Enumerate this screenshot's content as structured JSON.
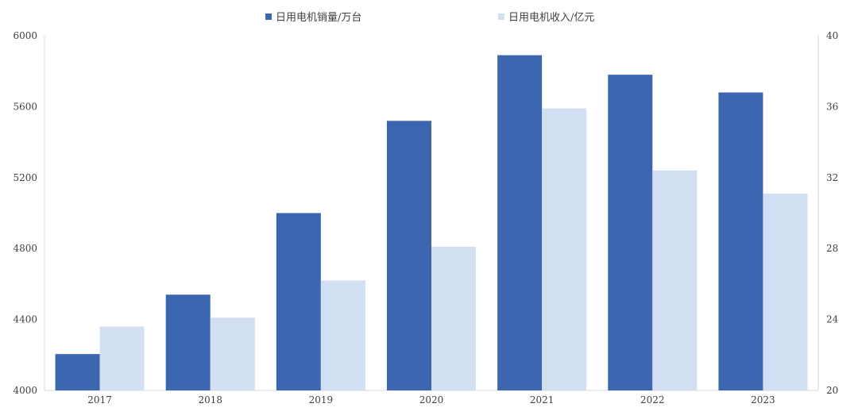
{
  "chart_data": {
    "type": "bar",
    "categories": [
      "2017",
      "2018",
      "2019",
      "2020",
      "2021",
      "2022",
      "2023"
    ],
    "series": [
      {
        "name": "日用电机销量/万台",
        "axis": "left",
        "color": "#3c66b0",
        "values": [
          4205,
          4540,
          5000,
          5520,
          5890,
          5780,
          5680
        ]
      },
      {
        "name": "日用电机收入/亿元",
        "axis": "right",
        "color": "#d2def1",
        "values": [
          23.6,
          24.1,
          26.2,
          28.1,
          35.9,
          32.4,
          31.1
        ]
      }
    ],
    "y_left": {
      "ylim": [
        4000,
        6000
      ],
      "ticks": [
        "4000",
        "4400",
        "4800",
        "5200",
        "5600",
        "6000"
      ]
    },
    "y_right": {
      "ylim": [
        20,
        40
      ],
      "ticks": [
        "20",
        "24",
        "28",
        "32",
        "36",
        "40"
      ]
    },
    "legend_position": "top-center",
    "grid": false
  }
}
